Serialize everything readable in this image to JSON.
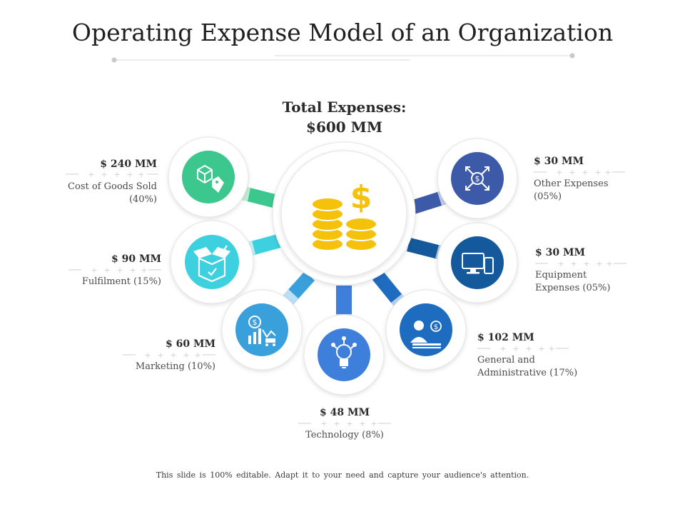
{
  "title": "Operating Expense Model of an Organization",
  "total": {
    "line1": "Total Expenses:",
    "line2": "$600 MM"
  },
  "segments": [
    {
      "id": "cogs",
      "amount": "$ 240 MM",
      "name": "Cost of Goods Sold (40%)",
      "icon": "box-tag-icon",
      "color": "#3cc78e"
    },
    {
      "id": "fulfilment",
      "amount": "$ 90 MM",
      "name": "Fulfilment (15%)",
      "icon": "open-box-icon",
      "color": "#3dd0df"
    },
    {
      "id": "marketing",
      "amount": "$ 60 MM",
      "name": "Marketing (10%)",
      "icon": "marketing-chart-icon",
      "color": "#3aa0dc"
    },
    {
      "id": "technology",
      "amount": "$ 48 MM",
      "name": "Technology (8%)",
      "icon": "lightbulb-icon",
      "color": "#3f7fdc"
    },
    {
      "id": "ga",
      "amount": "$ 102 MM",
      "name": "General and Administrative (17%)",
      "icon": "administrator-icon",
      "color": "#1e6cc0"
    },
    {
      "id": "equipment",
      "amount": "$ 30 MM",
      "name": "Equipment Expenses (05%)",
      "icon": "computer-devices-icon",
      "color": "#14599b"
    },
    {
      "id": "other",
      "amount": "$ 30 MM",
      "name": "Other Expenses (05%)",
      "icon": "dollar-arrows-icon",
      "color": "#3c5aa7"
    }
  ],
  "footer": "This slide is 100% editable.  Adapt it to your need and capture your audience's attention."
}
